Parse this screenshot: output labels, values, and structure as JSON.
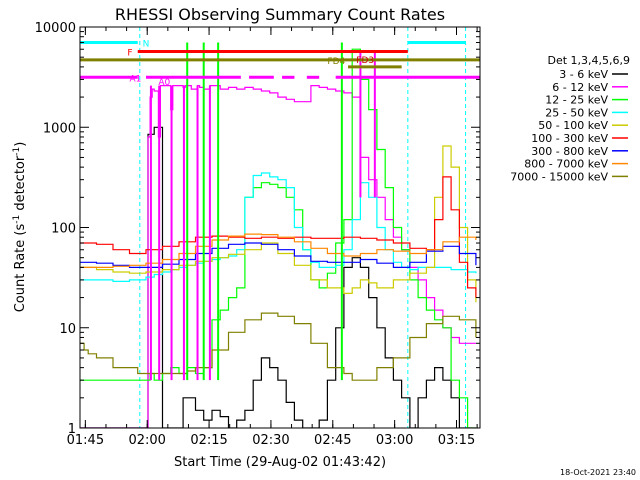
{
  "chart_data": {
    "type": "line",
    "title": "RHESSI Observing Summary Count Rates",
    "xlabel": "Start Time (29-Aug-02 01:43:42)",
    "ylabel_main": "Count Rate (s",
    "ylabel_sup1": "-1",
    "ylabel_mid": " detector",
    "ylabel_sup2": "-1",
    "ylabel_end": ")",
    "x_unit": "minutes after 01:43:42",
    "xlim": [
      0,
      97
    ],
    "ylim": [
      1,
      10000
    ],
    "yscale": "log",
    "xticks": [
      {
        "label": "01:45",
        "x": 1.3
      },
      {
        "label": "02:00",
        "x": 16.3
      },
      {
        "label": "02:15",
        "x": 31.3
      },
      {
        "label": "02:30",
        "x": 46.3
      },
      {
        "label": "02:45",
        "x": 61.3
      },
      {
        "label": "03:00",
        "x": 76.3
      },
      {
        "label": "03:15",
        "x": 91.3
      }
    ],
    "yticks": [
      {
        "label": "1",
        "v": 1
      },
      {
        "label": "10",
        "v": 10
      },
      {
        "label": "100",
        "v": 100
      },
      {
        "label": "1000",
        "v": 1000
      },
      {
        "label": "10000",
        "v": 10000
      }
    ],
    "legend_title": "Det 1,3,4,5,6,9",
    "legend_position": "right",
    "dashed_vlines": [
      0,
      14.5,
      79.5,
      93.5
    ],
    "series": [
      {
        "name": "3 - 6 keV",
        "color": "#000000",
        "x": [
          0,
          16,
          16.5,
          18,
          20,
          22,
          25,
          28,
          30,
          32,
          34,
          36,
          38,
          40,
          42,
          44,
          46,
          48,
          50,
          52,
          54,
          56,
          58,
          60,
          62,
          64,
          66,
          68,
          70,
          72,
          74,
          76,
          78,
          80,
          82,
          84,
          86,
          88,
          90,
          92,
          94,
          96
        ],
        "y": [
          0,
          0,
          850,
          1000,
          0,
          0,
          2,
          1.5,
          1.2,
          1.5,
          1.3,
          1,
          1.2,
          1.5,
          3,
          5,
          4,
          3,
          1.8,
          1.2,
          0,
          1,
          1.2,
          3,
          10,
          40,
          50,
          40,
          20,
          10,
          5,
          3,
          2,
          0,
          2,
          3,
          4,
          3,
          2,
          0,
          0,
          0
        ]
      },
      {
        "name": "6 - 12 keV",
        "color": "#ff00ff",
        "x": [
          0,
          16,
          16.5,
          17,
          17.5,
          18,
          19,
          19.5,
          22,
          22.5,
          25,
          25.5,
          27,
          28.5,
          29,
          30,
          31.5,
          32,
          34,
          36,
          38,
          40,
          42,
          44,
          46,
          48,
          50,
          52,
          54,
          56,
          58,
          60,
          62,
          64,
          66,
          68,
          70,
          72,
          74,
          76,
          78,
          80,
          82,
          84,
          86,
          88,
          90,
          92,
          94,
          96
        ],
        "y": [
          0,
          0,
          800,
          2000,
          2400,
          2300,
          800,
          2600,
          1500,
          2600,
          2500,
          2600,
          2400,
          2600,
          2500,
          2400,
          2600,
          2600,
          2400,
          2500,
          2400,
          2500,
          2400,
          2300,
          2200,
          2000,
          1900,
          1800,
          1800,
          2600,
          2500,
          2400,
          2300,
          2200,
          2000,
          500,
          300,
          200,
          120,
          80,
          60,
          40,
          30,
          20,
          15,
          10,
          8,
          7,
          7,
          7
        ]
      },
      {
        "name": "12 - 25 keV",
        "color": "#00ff00",
        "x": [
          0,
          16,
          17,
          18,
          20,
          22,
          24,
          26,
          28,
          30,
          32,
          34,
          36,
          38,
          40,
          42,
          44,
          46,
          48,
          50,
          52,
          54,
          56,
          58,
          60,
          62,
          64,
          66,
          68,
          70,
          72,
          74,
          76,
          78,
          80,
          82,
          84,
          86,
          88,
          90,
          92,
          94,
          96
        ],
        "y": [
          3,
          3,
          3.5,
          3,
          3.5,
          4,
          3.5,
          4,
          3.5,
          4,
          12,
          15,
          20,
          25,
          200,
          250,
          280,
          270,
          250,
          200,
          150,
          60,
          30,
          25,
          35,
          70,
          120,
          6000,
          3000,
          1500,
          600,
          250,
          100,
          60,
          30,
          20,
          15,
          12,
          10,
          3,
          2,
          1,
          1
        ]
      },
      {
        "name": "25 - 50 keV",
        "color": "#00ffff",
        "x": [
          0,
          4,
          8,
          12,
          16,
          18,
          20,
          22,
          24,
          26,
          28,
          30,
          32,
          34,
          36,
          38,
          40,
          42,
          44,
          46,
          48,
          50,
          52,
          54,
          56,
          58,
          60,
          62,
          64,
          66,
          68,
          70,
          72,
          74,
          76,
          78,
          80,
          82,
          84,
          86,
          88,
          90,
          92,
          94,
          96
        ],
        "y": [
          30,
          30,
          29,
          30,
          32,
          34,
          36,
          38,
          40,
          42,
          44,
          46,
          48,
          50,
          52,
          60,
          200,
          330,
          350,
          320,
          300,
          250,
          100,
          60,
          45,
          40,
          40,
          42,
          60,
          120,
          280,
          200,
          100,
          60,
          45,
          40,
          38,
          40,
          40,
          40,
          40,
          38,
          38,
          36,
          35
        ]
      },
      {
        "name": "50 - 100 keV",
        "color": "#cccc00",
        "x": [
          0,
          4,
          8,
          12,
          16,
          20,
          24,
          28,
          32,
          36,
          40,
          44,
          48,
          52,
          56,
          60,
          64,
          66,
          68,
          70,
          72,
          76,
          80,
          84,
          86,
          88,
          90,
          92,
          94,
          96
        ],
        "y": [
          40,
          38,
          36,
          35,
          36,
          38,
          42,
          46,
          50,
          54,
          60,
          70,
          55,
          42,
          30,
          25,
          22,
          25,
          30,
          28,
          25,
          30,
          35,
          40,
          200,
          650,
          400,
          100,
          30,
          18
        ]
      },
      {
        "name": "100 - 300 keV",
        "color": "#ff0000",
        "x": [
          0,
          4,
          8,
          12,
          16,
          20,
          24,
          28,
          32,
          36,
          40,
          44,
          48,
          52,
          56,
          60,
          64,
          68,
          72,
          76,
          80,
          84,
          86,
          88,
          90,
          92,
          94,
          96
        ],
        "y": [
          70,
          68,
          60,
          55,
          60,
          65,
          72,
          80,
          82,
          80,
          78,
          80,
          78,
          80,
          78,
          78,
          80,
          78,
          75,
          70,
          62,
          60,
          120,
          320,
          150,
          45,
          25,
          20
        ]
      },
      {
        "name": "300 - 800 keV",
        "color": "#0000ff",
        "x": [
          0,
          4,
          8,
          12,
          16,
          20,
          24,
          28,
          32,
          36,
          40,
          44,
          48,
          52,
          56,
          60,
          64,
          68,
          72,
          76,
          80,
          84,
          88,
          92,
          96
        ],
        "y": [
          45,
          44,
          42,
          40,
          40,
          43,
          48,
          55,
          62,
          68,
          70,
          68,
          60,
          52,
          46,
          45,
          45,
          48,
          44,
          40,
          45,
          58,
          65,
          55,
          42
        ]
      },
      {
        "name": "800 - 7000 keV",
        "color": "#ff8800",
        "x": [
          0,
          4,
          8,
          12,
          16,
          20,
          24,
          28,
          32,
          36,
          40,
          44,
          48,
          52,
          56,
          60,
          64,
          68,
          72,
          76,
          80,
          84,
          88,
          92,
          96
        ],
        "y": [
          40,
          40,
          41,
          42,
          44,
          48,
          55,
          65,
          75,
          82,
          86,
          85,
          80,
          72,
          62,
          55,
          52,
          55,
          60,
          58,
          55,
          60,
          72,
          80,
          75
        ]
      },
      {
        "name": "7000 - 15000 keV",
        "color": "#808000",
        "x": [
          0,
          1,
          2,
          4,
          8,
          12,
          14,
          16,
          20,
          24,
          26,
          28,
          32,
          36,
          40,
          44,
          48,
          52,
          56,
          60,
          64,
          66,
          68,
          72,
          76,
          80,
          84,
          88,
          92,
          96
        ],
        "y": [
          7,
          6,
          5.5,
          5,
          4,
          4,
          3.5,
          3.5,
          3.5,
          3.5,
          3.7,
          4,
          6,
          9,
          12,
          14,
          13,
          11,
          7,
          4,
          3.5,
          3,
          3,
          4,
          5,
          8,
          11,
          13,
          12,
          8
        ]
      }
    ],
    "annotations": [
      {
        "label": "N",
        "color": "#00ffff",
        "segments": [
          [
            0,
            14
          ],
          [
            79.5,
            93.5
          ]
        ],
        "level": 7000,
        "label_x": 15.2
      },
      {
        "label": "F",
        "color": "#ff0000",
        "segments": [
          [
            14,
            79.5
          ]
        ],
        "level": 5700,
        "label_x": 11.5
      },
      {
        "label": "FD3",
        "color": "#cc0000",
        "segments": [],
        "level": 4800,
        "label_x": 67
      },
      {
        "label": "FD4",
        "color": "#808000",
        "segments": [
          [
            0,
            97
          ]
        ],
        "level": 4700,
        "label_x": 60
      },
      {
        "label": "",
        "color": "#808000",
        "segments": [
          [
            65,
            78
          ]
        ],
        "level": 4000,
        "label_x": 0
      },
      {
        "label": "A1",
        "color": "#ff00ff",
        "segments": [
          [
            0,
            14
          ],
          [
            16,
            39
          ],
          [
            41,
            47
          ],
          [
            49,
            52
          ],
          [
            55,
            58
          ],
          [
            62,
            97
          ]
        ],
        "level": 3150,
        "label_x": 12
      },
      {
        "label": "A0",
        "color": "#ff00ff",
        "segments": [],
        "level": 2900,
        "label_x": 19
      }
    ],
    "pulses": [
      {
        "color": "#ff00ff",
        "x": [
          17.2,
          19.2,
          22.2,
          25.2,
          28.5,
          31.5
        ],
        "to": 2600,
        "from": 3
      },
      {
        "color": "#00ff00",
        "x": [
          26,
          30,
          33.5,
          63.5
        ],
        "to": 7000,
        "from": 3
      },
      {
        "color": "#ff00ff",
        "x": [
          68,
          71.5
        ],
        "to": 5500,
        "from": 200
      }
    ],
    "footer": "18-Oct-2021 23:40"
  }
}
